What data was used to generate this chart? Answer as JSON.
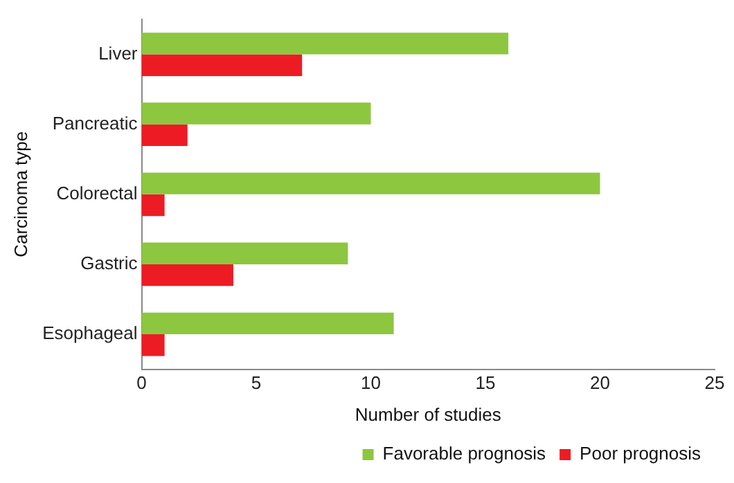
{
  "chart_data": {
    "type": "bar",
    "orientation": "horizontal",
    "xlabel": "Number of studies",
    "ylabel": "Carcinoma type",
    "categories": [
      "Liver",
      "Pancreatic",
      "Colorectal",
      "Gastric",
      "Esophageal"
    ],
    "series": [
      {
        "name": "Favorable prognosis",
        "color": "#8dc63f",
        "values": [
          16,
          10,
          20,
          9,
          11
        ]
      },
      {
        "name": "Poor prognosis",
        "color": "#ed1c24",
        "values": [
          7,
          2,
          1,
          4,
          1
        ]
      }
    ],
    "xlim": [
      0,
      25
    ],
    "xticks": [
      0,
      5,
      10,
      15,
      20,
      25
    ],
    "grid": false,
    "legend": "bottom right"
  }
}
